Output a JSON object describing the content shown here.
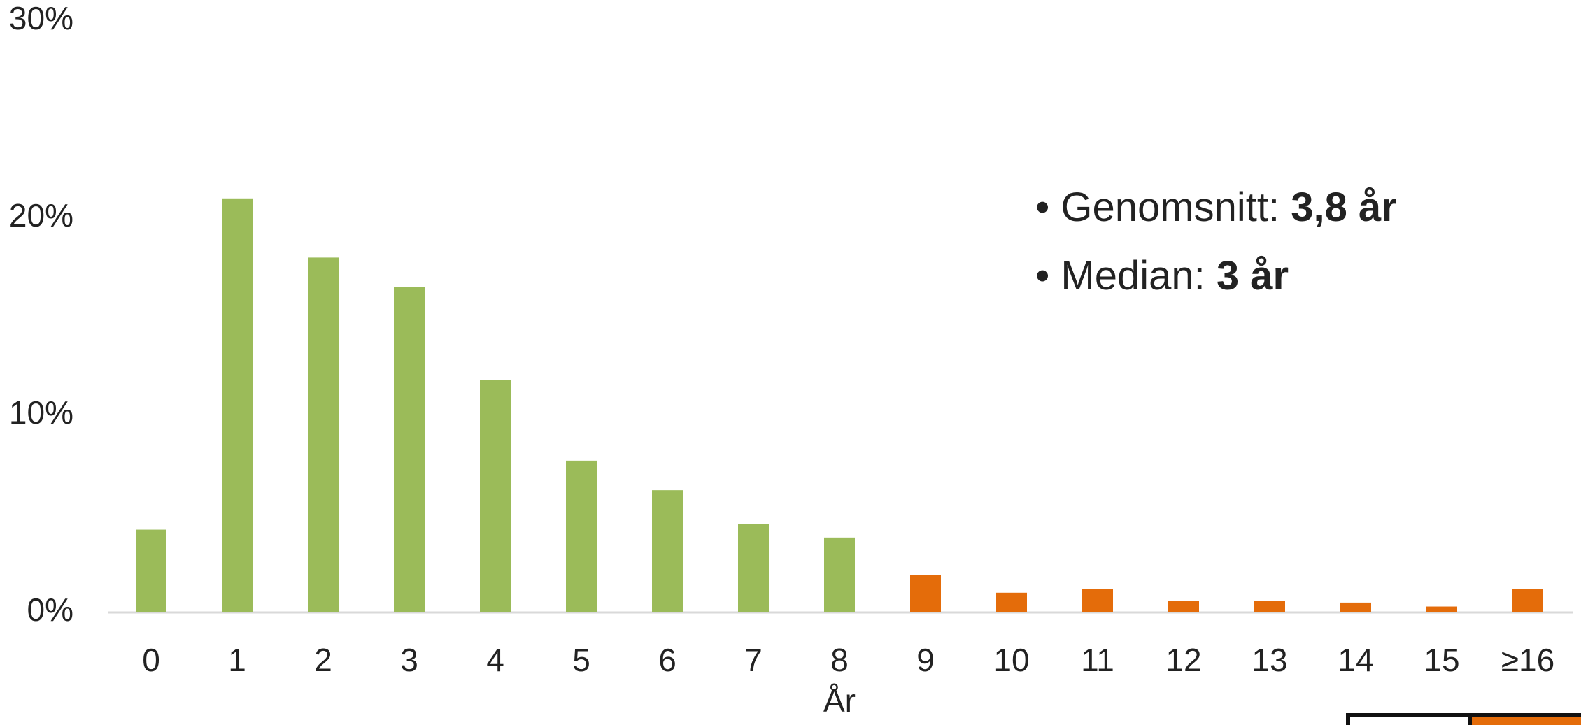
{
  "chart_data": {
    "type": "bar",
    "categories": [
      "0",
      "1",
      "2",
      "3",
      "4",
      "5",
      "6",
      "7",
      "8",
      "9",
      "10",
      "11",
      "12",
      "13",
      "14",
      "15",
      "≥16"
    ],
    "values": [
      4.2,
      21.0,
      18.0,
      16.5,
      11.8,
      7.7,
      6.2,
      4.5,
      3.8,
      1.9,
      1.0,
      1.2,
      0.6,
      0.6,
      0.5,
      0.3,
      1.2
    ],
    "xlabel": "År",
    "ylabel": "",
    "ylim": [
      0,
      30
    ],
    "yticks": [
      "0%",
      "10%",
      "20%",
      "30%"
    ],
    "grid": false,
    "colors": {
      "primary": "#9bbb59",
      "highlight": "#e46c0a",
      "axis": "#d9d9d9"
    },
    "highlight_from_index": 9
  },
  "stats": {
    "mean_label": "Genomsnitt: ",
    "mean_value": "3,8 år",
    "median_label": "Median: ",
    "median_value": "3 år"
  }
}
